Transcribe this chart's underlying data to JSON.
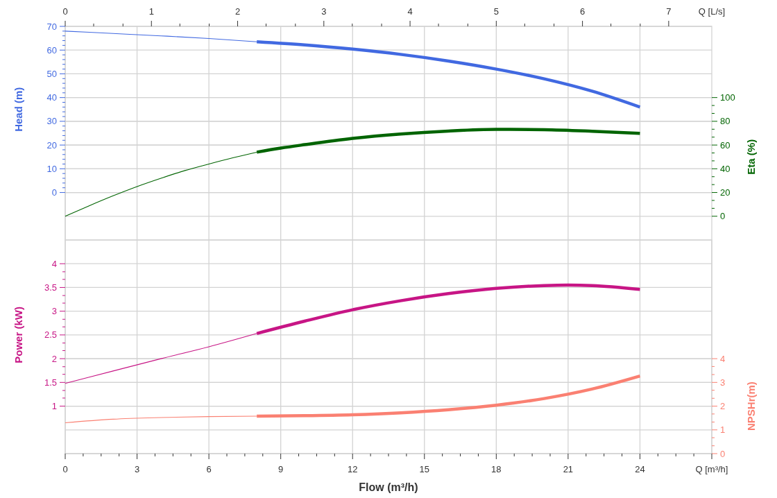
{
  "chart_data": [
    {
      "type": "line",
      "ylabel": "Head (m)",
      "y2label": "Eta (%)",
      "x2label": "Q [L/s]",
      "xlim": [
        0,
        27
      ],
      "xticks": [
        0,
        3,
        6,
        9,
        12,
        15,
        18,
        21,
        24
      ],
      "tick_labels": "y",
      "x2lim": [
        0,
        7.5
      ],
      "x2ticks": [
        0,
        {
          "value": 0.33,
          "label": null
        },
        {
          "value": 0.67,
          "label": null
        },
        1,
        {
          "value": 1.33,
          "label": null
        },
        {
          "value": 1.67,
          "label": null
        },
        2,
        {
          "value": 2.33,
          "label": null
        },
        {
          "value": 2.67,
          "label": null
        },
        3,
        {
          "value": 3.33,
          "label": null
        },
        {
          "value": 3.67,
          "label": null
        },
        4,
        {
          "value": 4.33,
          "label": null
        },
        {
          "value": 4.67,
          "label": null
        },
        5,
        {
          "value": 5.33,
          "label": null
        },
        {
          "value": 5.67,
          "label": null
        },
        6,
        {
          "value": 6.33,
          "label": null
        },
        {
          "value": 6.67,
          "label": null
        },
        7
      ],
      "ylim": [
        -20,
        70
      ],
      "yticks": [
        0,
        {
          "value": 2,
          "label": null
        },
        {
          "value": 4,
          "label": null
        },
        {
          "value": 6,
          "label": null
        },
        {
          "value": 8,
          "label": null
        },
        10,
        {
          "value": 12,
          "label": null
        },
        {
          "value": 14,
          "label": null
        },
        {
          "value": 16,
          "label": null
        },
        {
          "value": 18,
          "label": null
        },
        20,
        {
          "value": 22,
          "label": null
        },
        {
          "value": 24,
          "label": null
        },
        {
          "value": 26,
          "label": null
        },
        {
          "value": 28,
          "label": null
        },
        30,
        {
          "value": 32,
          "label": null
        },
        {
          "value": 34,
          "label": null
        },
        {
          "value": 36,
          "label": null
        },
        {
          "value": 38,
          "label": null
        },
        40,
        {
          "value": 42,
          "label": null
        },
        {
          "value": 44,
          "label": null
        },
        {
          "value": 46,
          "label": null
        },
        {
          "value": 48,
          "label": null
        },
        50,
        {
          "value": 52,
          "label": null
        },
        {
          "value": 54,
          "label": null
        },
        {
          "value": 56,
          "label": null
        },
        {
          "value": 58,
          "label": null
        },
        60,
        {
          "value": 62,
          "label": null
        },
        {
          "value": 64,
          "label": null
        },
        {
          "value": 66,
          "label": null
        },
        {
          "value": 68,
          "label": null
        },
        70
      ],
      "y2lim": [
        -20,
        160
      ],
      "y2ticks": [
        0,
        {
          "value": 6.67,
          "label": null
        },
        {
          "value": 13.33,
          "label": null
        },
        20,
        {
          "value": 26.67,
          "label": null
        },
        {
          "value": 33.33,
          "label": null
        },
        40,
        {
          "value": 46.67,
          "label": null
        },
        {
          "value": 53.33,
          "label": null
        },
        60,
        {
          "value": 66.67,
          "label": null
        },
        {
          "value": 73.33,
          "label": null
        },
        80,
        {
          "value": 86.67,
          "label": null
        },
        {
          "value": 93.33,
          "label": null
        },
        100
      ],
      "grid": true,
      "series": [
        {
          "axis": "y",
          "color": "#4169e1",
          "x": [
            0,
            2,
            4,
            6,
            8
          ],
          "values": [
            68,
            67.0,
            66.0,
            64.9,
            63.5
          ]
        },
        {
          "axis": "y",
          "color": "#4169e1",
          "x": [
            8,
            10,
            12,
            14,
            16,
            18,
            20,
            22,
            24
          ],
          "values": [
            63.5,
            62.2,
            60.4,
            58.2,
            55.4,
            52.0,
            47.9,
            42.7,
            36.0
          ]
        },
        {
          "axis": "y2",
          "color": "#006400",
          "x": [
            0,
            1,
            2,
            3,
            4,
            5,
            6,
            7,
            8
          ],
          "values": [
            0,
            8.8,
            17.2,
            25,
            32,
            38.5,
            44,
            49.2,
            54
          ]
        },
        {
          "axis": "y2",
          "color": "#006400",
          "x": [
            8,
            9,
            10,
            12,
            14,
            16,
            18,
            20,
            22,
            24
          ],
          "values": [
            54,
            57.4,
            60.3,
            65.6,
            69.3,
            71.8,
            73.2,
            72.9,
            71.6,
            69.8
          ]
        }
      ]
    },
    {
      "type": "line",
      "ylabel": "Power (kW)",
      "y2label": "NPSHr(m)",
      "xlabel": "Flow (m³/h)",
      "xlim": [
        0,
        27
      ],
      "xticks": [
        0,
        {
          "value": 0.75,
          "label": null
        },
        {
          "value": 1.5,
          "label": null
        },
        {
          "value": 2.25,
          "label": null
        },
        3,
        {
          "value": 3.75,
          "label": null
        },
        {
          "value": 4.5,
          "label": null
        },
        {
          "value": 5.25,
          "label": null
        },
        6,
        {
          "value": 6.75,
          "label": null
        },
        {
          "value": 7.5,
          "label": null
        },
        {
          "value": 8.25,
          "label": null
        },
        9,
        {
          "value": 9.75,
          "label": null
        },
        {
          "value": 10.5,
          "label": null
        },
        {
          "value": 11.25,
          "label": null
        },
        12,
        {
          "value": 12.75,
          "label": null
        },
        {
          "value": 13.5,
          "label": null
        },
        {
          "value": 14.25,
          "label": null
        },
        15,
        {
          "value": 15.75,
          "label": null
        },
        {
          "value": 16.5,
          "label": null
        },
        {
          "value": 17.25,
          "label": null
        },
        18,
        {
          "value": 18.75,
          "label": null
        },
        {
          "value": 19.5,
          "label": null
        },
        {
          "value": 20.25,
          "label": null
        },
        21,
        {
          "value": 21.75,
          "label": null
        },
        {
          "value": 22.5,
          "label": null
        },
        {
          "value": 23.25,
          "label": null
        },
        24,
        {
          "value": 24.75,
          "label": null
        },
        {
          "value": 25.5,
          "label": null
        },
        {
          "value": 26.25,
          "label": null
        },
        {
          "value": 27,
          "label": "Q [m³/h]"
        }
      ],
      "ylim": [
        0,
        4.5
      ],
      "yticks": [
        1,
        {
          "value": 1.17,
          "label": null
        },
        {
          "value": 1.33,
          "label": null
        },
        1.5,
        {
          "value": 1.67,
          "label": null
        },
        {
          "value": 1.83,
          "label": null
        },
        2,
        {
          "value": 2.17,
          "label": null
        },
        {
          "value": 2.33,
          "label": null
        },
        2.5,
        {
          "value": 2.67,
          "label": null
        },
        {
          "value": 2.83,
          "label": null
        },
        3,
        {
          "value": 3.17,
          "label": null
        },
        {
          "value": 3.33,
          "label": null
        },
        3.5,
        {
          "value": 3.67,
          "label": null
        },
        {
          "value": 3.83,
          "label": null
        },
        4
      ],
      "y2lim": [
        0,
        9
      ],
      "y2ticks": [
        0,
        {
          "value": 0.33,
          "label": null
        },
        {
          "value": 0.67,
          "label": null
        },
        1,
        {
          "value": 1.33,
          "label": null
        },
        {
          "value": 1.67,
          "label": null
        },
        2,
        {
          "value": 2.33,
          "label": null
        },
        {
          "value": 2.67,
          "label": null
        },
        3,
        {
          "value": 3.33,
          "label": null
        },
        {
          "value": 3.67,
          "label": null
        },
        4
      ],
      "grid": true,
      "series": [
        {
          "axis": "y",
          "color": "#c71585",
          "x": [
            0,
            2,
            4,
            6,
            8
          ],
          "values": [
            1.48,
            1.74,
            2.0,
            2.25,
            2.53
          ]
        },
        {
          "axis": "y",
          "color": "#c71585",
          "x": [
            8,
            10,
            12,
            14,
            16,
            18,
            20,
            21,
            22,
            24
          ],
          "values": [
            2.53,
            2.79,
            3.03,
            3.22,
            3.37,
            3.48,
            3.54,
            3.55,
            3.54,
            3.46
          ]
        },
        {
          "axis": "y2",
          "color": "#fa8072",
          "x": [
            0,
            2,
            4,
            6,
            8
          ],
          "values": [
            1.3,
            1.45,
            1.52,
            1.56,
            1.58
          ]
        },
        {
          "axis": "y2",
          "color": "#fa8072",
          "x": [
            8,
            10,
            12,
            14,
            16,
            18,
            20,
            22,
            24
          ],
          "values": [
            1.58,
            1.6,
            1.64,
            1.72,
            1.85,
            2.04,
            2.32,
            2.72,
            3.27
          ]
        }
      ]
    }
  ]
}
